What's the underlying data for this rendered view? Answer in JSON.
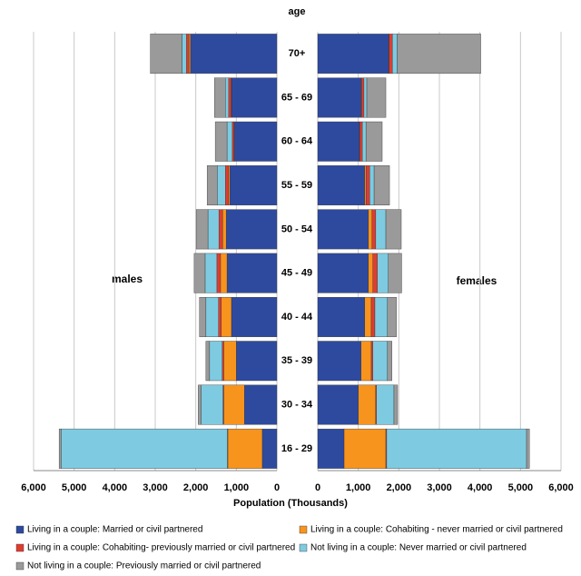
{
  "chart_data": {
    "type": "pyramid",
    "category_label": "age",
    "xlabel": "Population (Thousands)",
    "categories": [
      "70+",
      "65 - 69",
      "60 - 64",
      "55 - 59",
      "50 - 54",
      "45 - 49",
      "40 - 44",
      "35 - 39",
      "30 - 34",
      "16 - 29"
    ],
    "groups": [
      "males",
      "females"
    ],
    "xlim": [
      0,
      6000
    ],
    "xticks": [
      {
        "value": 6000,
        "label": "6,000"
      },
      {
        "value": 5000,
        "label": "5,000"
      },
      {
        "value": 4000,
        "label": "4,000"
      },
      {
        "value": 3000,
        "label": "3,000"
      },
      {
        "value": 2000,
        "label": "2,000"
      },
      {
        "value": 1000,
        "label": "1,000"
      },
      0
    ],
    "grid": true,
    "series": [
      {
        "name": "Living in a couple: Married or civil partnered",
        "color": "#2e4a9f",
        "values": [
          [
            2130,
            1120,
            1050,
            1160,
            1250,
            1230,
            1120,
            1000,
            800,
            360
          ],
          [
            1750,
            1070,
            1030,
            1160,
            1250,
            1250,
            1160,
            1070,
            1000,
            650
          ]
        ]
      },
      {
        "name": "Living in a couple: Cohabiting - never married or civil partnered",
        "color": "#f7941d",
        "values": [
          [
            40,
            10,
            10,
            30,
            90,
            160,
            250,
            310,
            510,
            850
          ],
          [
            10,
            10,
            10,
            30,
            90,
            110,
            160,
            250,
            430,
            1030
          ]
        ]
      },
      {
        "name": "Living in a couple: Cohabiting- previously married or civil partnered",
        "color": "#e03c31",
        "values": [
          [
            60,
            60,
            40,
            80,
            90,
            90,
            70,
            40,
            20,
            10
          ],
          [
            80,
            60,
            60,
            90,
            90,
            110,
            90,
            40,
            20,
            20
          ]
        ]
      },
      {
        "name": "Not living in a couple: Never married or civil partnered",
        "color": "#7ecbe1",
        "values": [
          [
            110,
            80,
            130,
            200,
            270,
            290,
            310,
            310,
            540,
            4100
          ],
          [
            120,
            70,
            90,
            110,
            250,
            270,
            310,
            360,
            430,
            3450
          ]
        ]
      },
      {
        "name": "Not living in a couple: Previously married or civil partnered",
        "color": "#9a9a9a",
        "values": [
          [
            780,
            270,
            290,
            250,
            290,
            270,
            160,
            90,
            70,
            50
          ],
          [
            2060,
            470,
            400,
            380,
            380,
            330,
            220,
            110,
            90,
            70
          ]
        ]
      }
    ]
  }
}
